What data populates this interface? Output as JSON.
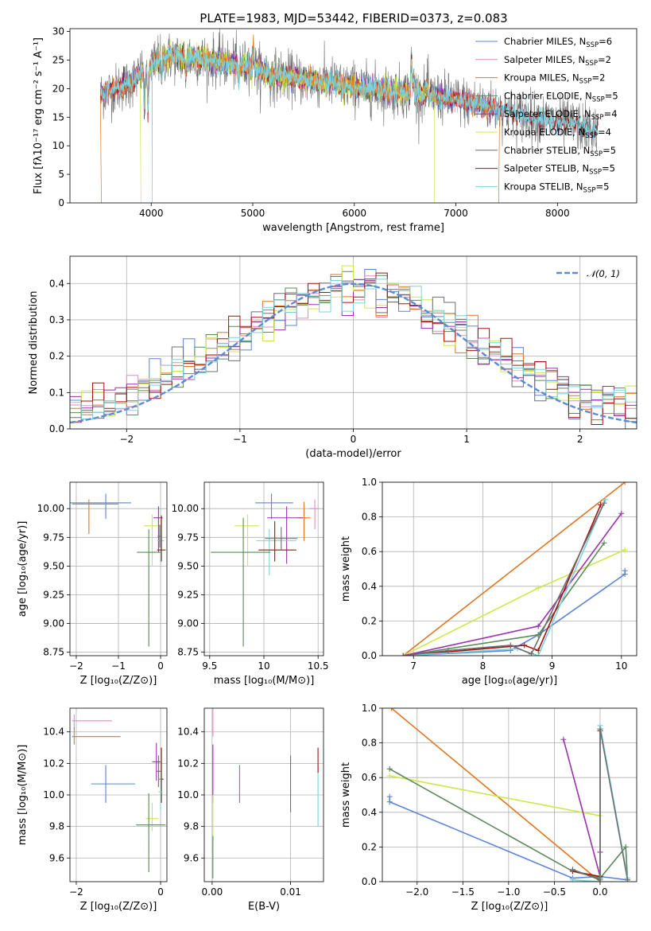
{
  "title": "PLATE=1983, MJD=53442, FIBERID=0373, z=0.083",
  "colors": {
    "Chabrier MILES": "#5b84d8",
    "Salpeter MILES": "#e68ac2",
    "Kroupa MILES": "#e07522",
    "Chabrier ELODIE": "#5a8a5a",
    "Salpeter ELODIE": "#9b2fae",
    "Kroupa ELODIE": "#cce84a",
    "Chabrier STELIB": "#6e6e6e",
    "Salpeter STELIB": "#aa0f0f",
    "Kroupa STELIB": "#78d4e0"
  },
  "chart_data": [
    {
      "id": "spectrum",
      "type": "line",
      "xlabel": "wavelength [Angstrom, rest frame]",
      "ylabel": "Flux [fλ10⁻¹⁷ erg cm⁻² s⁻¹ A⁻¹]",
      "xlim": [
        3200,
        8780
      ],
      "ylim": [
        0,
        30.5
      ],
      "xticks": [
        "4000",
        "5000",
        "6000",
        "7000",
        "8000"
      ],
      "yticks": [
        "0",
        "5",
        "10",
        "15",
        "20",
        "25",
        "30"
      ],
      "grid": false,
      "legend_position": "top-right",
      "legend": [
        {
          "series": "Chabrier MILES",
          "label": "Chabrier MILES, N",
          "sub": "SSP",
          "suffix": "=6"
        },
        {
          "series": "Salpeter MILES",
          "label": "Salpeter MILES, N",
          "sub": "SSP",
          "suffix": "=2"
        },
        {
          "series": "Kroupa MILES",
          "label": "Kroupa MILES, N",
          "sub": "SSP",
          "suffix": "=2"
        },
        {
          "series": "Chabrier ELODIE",
          "label": "Chabrier ELODIE, N",
          "sub": "SSP",
          "suffix": "=5"
        },
        {
          "series": "Salpeter ELODIE",
          "label": "Salpeter ELODIE, N",
          "sub": "SSP",
          "suffix": "=4"
        },
        {
          "series": "Kroupa ELODIE",
          "label": "Kroupa ELODIE, N",
          "sub": "SSP",
          "suffix": "=4"
        },
        {
          "series": "Chabrier STELIB",
          "label": "Chabrier STELIB, N",
          "sub": "SSP",
          "suffix": "=5"
        },
        {
          "series": "Salpeter STELIB",
          "label": "Salpeter STELIB, N",
          "sub": "SSP",
          "suffix": "=5"
        },
        {
          "series": "Kroupa STELIB",
          "label": "Kroupa STELIB, N",
          "sub": "SSP",
          "suffix": "=5"
        }
      ],
      "continuum": [
        [
          3500,
          19
        ],
        [
          3650,
          20
        ],
        [
          3800,
          21
        ],
        [
          3950,
          23.5
        ],
        [
          4100,
          25.5
        ],
        [
          4300,
          25.5
        ],
        [
          4600,
          25
        ],
        [
          4900,
          24
        ],
        [
          5200,
          22.5
        ],
        [
          5500,
          21.5
        ],
        [
          5800,
          21
        ],
        [
          6100,
          20
        ],
        [
          6400,
          19.5
        ],
        [
          6700,
          19
        ],
        [
          7000,
          18
        ],
        [
          7300,
          17
        ],
        [
          7600,
          15.5
        ],
        [
          7900,
          14.5
        ],
        [
          8200,
          13.5
        ],
        [
          8400,
          12.5
        ]
      ],
      "features": [
        [
          3934,
          -7
        ],
        [
          3969,
          -8
        ],
        [
          4102,
          -4
        ],
        [
          4340,
          -3
        ],
        [
          4861,
          -3
        ],
        [
          5175,
          -2
        ],
        [
          5893,
          -1.5
        ],
        [
          6563,
          6
        ],
        [
          6583,
          2.5
        ],
        [
          6717,
          1.5
        ],
        [
          4959,
          2
        ],
        [
          5007,
          4
        ]
      ],
      "dropouts": [
        {
          "series": "Kroupa MILES",
          "x": 3510
        },
        {
          "series": "Kroupa MILES",
          "x": 7420
        },
        {
          "series": "Kroupa ELODIE",
          "x": 3900
        },
        {
          "series": "Kroupa ELODIE",
          "x": 6790
        },
        {
          "series": "Kroupa STELIB",
          "x": 4010
        }
      ]
    },
    {
      "id": "residuals",
      "type": "histogram",
      "xlabel": "(data-model)/error",
      "ylabel": "Normed distribution",
      "xlim": [
        -2.5,
        2.5
      ],
      "ylim": [
        0,
        0.475
      ],
      "xticks": [
        "−2",
        "−1",
        "0",
        "1",
        "2"
      ],
      "yticks": [
        "0.0",
        "0.1",
        "0.2",
        "0.3",
        "0.4"
      ],
      "grid": true,
      "bin_width": 0.1,
      "legend_position": "top-right",
      "reference_curve": {
        "label": "𝒩(0, 1)",
        "color": "#5b8bd8",
        "mean": 0,
        "sigma": 1
      },
      "bins_series": [
        "Chabrier MILES",
        "Salpeter MILES",
        "Kroupa MILES",
        "Chabrier ELODIE",
        "Salpeter ELODIE",
        "Kroupa ELODIE",
        "Chabrier STELIB",
        "Salpeter STELIB",
        "Kroupa STELIB"
      ]
    },
    {
      "id": "age-vs-Z",
      "type": "errorbar",
      "xlabel": "Z [log₁₀(Z/Z⊙)]",
      "ylabel": "age  [log₁₀(age/yr)]",
      "xlim": [
        -2.15,
        0.15
      ],
      "ylim": [
        8.72,
        10.23
      ],
      "xticks": [
        -2,
        -1,
        0
      ],
      "yticks": [
        8.75,
        9.0,
        9.25,
        9.5,
        9.75,
        10.0
      ],
      "grid": true,
      "points": [
        {
          "series": "Chabrier MILES",
          "x": -1.3,
          "y": 10.05,
          "xerr": [
            0.9,
            0.6
          ],
          "yerr": [
            0.14,
            0.08
          ]
        },
        {
          "series": "Kroupa MILES",
          "x": -1.7,
          "y": 10.04,
          "xerr": [
            0.4,
            0.7
          ],
          "yerr": [
            0.26,
            0.04
          ]
        },
        {
          "series": "Kroupa ELODIE",
          "x": -0.2,
          "y": 9.85,
          "xerr": [
            0.2,
            0.2
          ],
          "yerr": [
            0.35,
            0.1
          ]
        },
        {
          "series": "Salpeter ELODIE",
          "x": -0.05,
          "y": 9.92,
          "xerr": [
            0.12,
            0.1
          ],
          "yerr": [
            0.3,
            0.1
          ]
        },
        {
          "series": "Kroupa STELIB",
          "x": 0.0,
          "y": 9.72,
          "xerr": [
            0.08,
            0.08
          ],
          "yerr": [
            0.2,
            0.1
          ]
        },
        {
          "series": "Salpeter STELIB",
          "x": 0.02,
          "y": 9.64,
          "xerr": [
            0.1,
            0.1
          ],
          "yerr": [
            0.1,
            0.3
          ]
        },
        {
          "series": "Chabrier ELODIE",
          "x": -0.28,
          "y": 9.62,
          "xerr": [
            0.28,
            0.28
          ],
          "yerr": [
            0.82,
            0.2
          ]
        },
        {
          "series": "Chabrier STELIB",
          "x": -0.02,
          "y": 9.76,
          "xerr": [
            0.05,
            0.05
          ],
          "yerr": [
            0.1,
            0.1
          ]
        }
      ]
    },
    {
      "id": "age-vs-mass",
      "type": "errorbar",
      "xlabel": "mass [log₁₀(M/M⊙)]",
      "xlim": [
        9.45,
        10.55
      ],
      "ylim": [
        8.72,
        10.23
      ],
      "xticks": [
        9.5,
        10.0,
        10.5
      ],
      "yticks": [
        8.75,
        9.0,
        9.25,
        9.5,
        9.75,
        10.0
      ],
      "grid": true,
      "points": [
        {
          "series": "Chabrier MILES",
          "x": 10.07,
          "y": 10.05,
          "xerr": [
            0.15,
            0.2
          ],
          "yerr": [
            0.14,
            0.08
          ]
        },
        {
          "series": "Salpeter MILES",
          "x": 10.47,
          "y": 10.0,
          "xerr": [
            0.05,
            0.04
          ],
          "yerr": [
            0.18,
            0.08
          ]
        },
        {
          "series": "Kroupa MILES",
          "x": 10.37,
          "y": 9.92,
          "xerr": [
            0.06,
            0.06
          ],
          "yerr": [
            0.2,
            0.14
          ]
        },
        {
          "series": "Kroupa ELODIE",
          "x": 9.85,
          "y": 9.85,
          "xerr": [
            0.12,
            0.1
          ],
          "yerr": [
            0.35,
            0.1
          ]
        },
        {
          "series": "Salpeter ELODIE",
          "x": 10.21,
          "y": 9.92,
          "xerr": [
            0.18,
            0.15
          ],
          "yerr": [
            0.4,
            0.1
          ]
        },
        {
          "series": "Kroupa STELIB",
          "x": 10.05,
          "y": 9.72,
          "xerr": [
            0.12,
            0.25
          ],
          "yerr": [
            0.3,
            0.1
          ]
        },
        {
          "series": "Salpeter STELIB",
          "x": 10.1,
          "y": 9.64,
          "xerr": [
            0.15,
            0.2
          ],
          "yerr": [
            0.1,
            0.25
          ]
        },
        {
          "series": "Chabrier ELODIE",
          "x": 9.81,
          "y": 9.62,
          "xerr": [
            0.3,
            0.25
          ],
          "yerr": [
            0.82,
            0.3
          ]
        },
        {
          "series": "Chabrier STELIB",
          "x": 10.16,
          "y": 9.74,
          "xerr": [
            0.15,
            0.15
          ],
          "yerr": [
            0.1,
            0.1
          ]
        }
      ]
    },
    {
      "id": "mass-weight-vs-age",
      "type": "line",
      "xlabel": "age  [log₁₀(age/yr)]",
      "ylabel": "mass weight",
      "xlim": [
        6.55,
        10.22
      ],
      "ylim": [
        0,
        1.0
      ],
      "xticks": [
        7,
        8,
        9,
        10
      ],
      "yticks": [
        "0.0",
        "0.2",
        "0.4",
        "0.6",
        "0.8",
        "1.0"
      ],
      "grid": true,
      "series": [
        {
          "name": "Kroupa MILES",
          "x": [
            6.85,
            10.05
          ],
          "y": [
            0.0,
            1.0
          ]
        },
        {
          "name": "Chabrier MILES",
          "x": [
            6.85,
            8.4,
            8.8,
            10.05,
            10.05
          ],
          "y": [
            0.0,
            0.03,
            0.12,
            0.47,
            0.49
          ]
        },
        {
          "name": "Kroupa ELODIE",
          "x": [
            6.85,
            8.8,
            10.05
          ],
          "y": [
            0.0,
            0.39,
            0.61
          ]
        },
        {
          "name": "Chabrier ELODIE",
          "x": [
            6.85,
            8.8,
            9.75
          ],
          "y": [
            0.0,
            0.12,
            0.65
          ]
        },
        {
          "name": "Salpeter ELODIE",
          "x": [
            6.85,
            8.8,
            10.0
          ],
          "y": [
            0.0,
            0.17,
            0.82
          ]
        },
        {
          "name": "Salpeter STELIB",
          "x": [
            6.85,
            8.6,
            8.8,
            9.7
          ],
          "y": [
            0.0,
            0.06,
            0.03,
            0.87
          ]
        },
        {
          "name": "Kroupa STELIB",
          "x": [
            6.85,
            8.5,
            8.8,
            9.77
          ],
          "y": [
            0.0,
            0.04,
            0.0,
            0.9
          ]
        },
        {
          "name": "Chabrier STELIB",
          "x": [
            6.85,
            7.5,
            8.4,
            8.7,
            9.75
          ],
          "y": [
            0.0,
            0.03,
            0.06,
            0.01,
            0.88
          ]
        }
      ]
    },
    {
      "id": "mass-vs-Z",
      "type": "errorbar",
      "xlabel": "Z [log₁₀(Z/Z⊙)]",
      "ylabel": "mass [log₁₀(M/M⊙)]",
      "xlim": [
        -2.15,
        0.15
      ],
      "ylim": [
        9.45,
        10.55
      ],
      "xticks": [
        -2,
        0
      ],
      "yticks": [
        "9.6",
        "9.8",
        "10.0",
        "10.2",
        "10.4"
      ],
      "grid": true,
      "points": [
        {
          "series": "Salpeter MILES",
          "x": -2.05,
          "y": 10.47,
          "xerr": [
            0.05,
            0.9
          ],
          "yerr": [
            0.05,
            0.04
          ]
        },
        {
          "series": "Kroupa MILES",
          "x": -2.05,
          "y": 10.37,
          "xerr": [
            0.05,
            1.1
          ],
          "yerr": [
            0.05,
            0.06
          ]
        },
        {
          "series": "Chabrier MILES",
          "x": -1.3,
          "y": 10.07,
          "xerr": [
            0.35,
            0.7
          ],
          "yerr": [
            0.12,
            0.12
          ]
        },
        {
          "series": "Kroupa ELODIE",
          "x": -0.2,
          "y": 9.85,
          "xerr": [
            0.15,
            0.15
          ],
          "yerr": [
            0.08,
            0.1
          ]
        },
        {
          "series": "Chabrier ELODIE",
          "x": -0.28,
          "y": 9.81,
          "xerr": [
            0.3,
            0.4
          ],
          "yerr": [
            0.3,
            0.2
          ]
        },
        {
          "series": "Salpeter ELODIE",
          "x": -0.1,
          "y": 10.21,
          "xerr": [
            0.1,
            0.1
          ],
          "yerr": [
            0.12,
            0.12
          ]
        },
        {
          "series": "Salpeter STELIB",
          "x": 0.02,
          "y": 10.1,
          "xerr": [
            0.05,
            0.05
          ],
          "yerr": [
            0.15,
            0.2
          ]
        },
        {
          "series": "Kroupa STELIB",
          "x": 0.0,
          "y": 10.02,
          "xerr": [
            0.05,
            0.05
          ],
          "yerr": [
            0.12,
            0.12
          ]
        },
        {
          "series": "Chabrier STELIB",
          "x": -0.05,
          "y": 10.15,
          "xerr": [
            0.05,
            0.05
          ],
          "yerr": [
            0.1,
            0.1
          ]
        }
      ]
    },
    {
      "id": "mass-vs-EBV",
      "type": "errorbar",
      "xlabel": "E(B-V)",
      "xlim": [
        -0.001,
        0.0142
      ],
      "ylim": [
        9.45,
        10.55
      ],
      "xticks": [
        "0.00",
        "0.01"
      ],
      "yticks": [
        "9.6",
        "9.8",
        "10.0",
        "10.2",
        "10.4"
      ],
      "grid": true,
      "points": [
        {
          "series": "Salpeter MILES",
          "x": 0.0001,
          "y": 10.47,
          "xerr": [
            0,
            0
          ],
          "yerr": [
            0.1,
            0.08
          ]
        },
        {
          "series": "Salpeter ELODIE",
          "x": 0.0001,
          "y": 10.2,
          "xerr": [
            0,
            0
          ],
          "yerr": [
            0.25,
            0.12
          ]
        },
        {
          "series": "Kroupa ELODIE",
          "x": 0.0001,
          "y": 9.9,
          "xerr": [
            0,
            0
          ],
          "yerr": [
            0.2,
            0.1
          ]
        },
        {
          "series": "Chabrier ELODIE",
          "x": 0.0001,
          "y": 9.62,
          "xerr": [
            0,
            0
          ],
          "yerr": [
            0.15,
            0.12
          ]
        },
        {
          "series": "Chabrier MILES",
          "x": 0.0035,
          "y": 10.07,
          "xerr": [
            0,
            0
          ],
          "yerr": [
            0.12,
            0.12
          ]
        },
        {
          "series": "Chabrier STELIB",
          "x": 0.01,
          "y": 10.07,
          "xerr": [
            0,
            0
          ],
          "yerr": [
            0.18,
            0.18
          ]
        },
        {
          "series": "Kroupa STELIB",
          "x": 0.0135,
          "y": 10.0,
          "xerr": [
            0,
            0
          ],
          "yerr": [
            0.2,
            0.2
          ]
        },
        {
          "series": "Salpeter STELIB",
          "x": 0.0135,
          "y": 10.22,
          "xerr": [
            0,
            0
          ],
          "yerr": [
            0.08,
            0.08
          ]
        }
      ]
    },
    {
      "id": "mass-weight-vs-Z",
      "type": "line",
      "xlabel": "Z [log₁₀(Z/Z⊙)]",
      "ylabel": "mass weight",
      "xlim": [
        -2.38,
        0.4
      ],
      "ylim": [
        0,
        1.0
      ],
      "xticks": [
        "−2.0",
        "−1.5",
        "−1.0",
        "−0.5",
        "0.0"
      ],
      "yticks": [
        "0.0",
        "0.2",
        "0.4",
        "0.6",
        "0.8",
        "1.0"
      ],
      "grid": true,
      "series": [
        {
          "name": "Kroupa MILES",
          "x": [
            -2.28,
            0.0
          ],
          "y": [
            1.0,
            0.0
          ]
        },
        {
          "name": "Chabrier MILES",
          "x": [
            -2.3,
            -2.3,
            -0.3,
            0.0,
            0.3
          ],
          "y": [
            0.49,
            0.46,
            0.02,
            0.03,
            0.01
          ]
        },
        {
          "name": "Kroupa ELODIE",
          "x": [
            -2.3,
            0.0
          ],
          "y": [
            0.61,
            0.38
          ]
        },
        {
          "name": "Chabrier ELODIE",
          "x": [
            -2.3,
            -0.3,
            0.0,
            0.28,
            0.3
          ],
          "y": [
            0.65,
            0.06,
            0.02,
            0.2,
            0.01
          ]
        },
        {
          "name": "Salpeter ELODIE",
          "x": [
            -0.4,
            0.0,
            0.0
          ],
          "y": [
            0.82,
            0.03,
            0.17
          ]
        },
        {
          "name": "Salpeter STELIB",
          "x": [
            -0.3,
            0.0,
            0.0
          ],
          "y": [
            0.06,
            0.03,
            0.87
          ]
        },
        {
          "name": "Kroupa STELIB",
          "x": [
            -0.3,
            0.0,
            0.0,
            0.3
          ],
          "y": [
            0.01,
            0.0,
            0.9,
            0.02
          ]
        },
        {
          "name": "Chabrier STELIB",
          "x": [
            -0.3,
            0.0,
            0.0,
            0.3
          ],
          "y": [
            0.07,
            0.01,
            0.88,
            0.01
          ]
        }
      ]
    }
  ]
}
